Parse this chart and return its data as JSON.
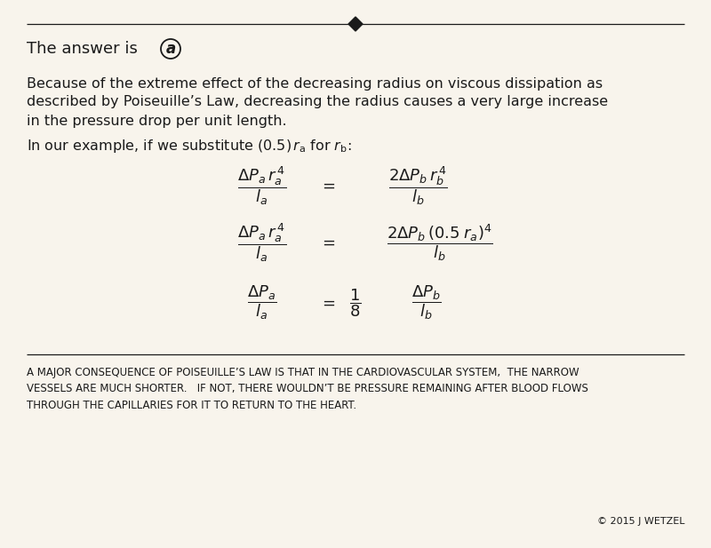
{
  "bg_color": "#f8f4ec",
  "text_color": "#1a1a1a",
  "answer_text": "The answer is ",
  "answer_circle_label": "a",
  "para1_line1": "Because of the extreme effect of the decreasing radius on viscous dissipation as",
  "para1_line2": "described by Poiseuille’s Law, decreasing the radius causes a very large increase",
  "para1_line3": "in the pressure drop per unit length.",
  "footer_text_line1": "A MAJOR CONSEQUENCE OF POISEUILLE’S LAW IS THAT IN THE CARDIOVASCULAR SYSTEM,  THE NARROW",
  "footer_text_line2": "VESSELS ARE MUCH SHORTER.   IF NOT, THERE WOULDN’T BE PRESSURE REMAINING AFTER BLOOD FLOWS",
  "footer_text_line3": "THROUGH THE CAPILLARIES FOR IT TO RETURN TO THE HEART.",
  "copyright": "© 2015 J WETZEL"
}
